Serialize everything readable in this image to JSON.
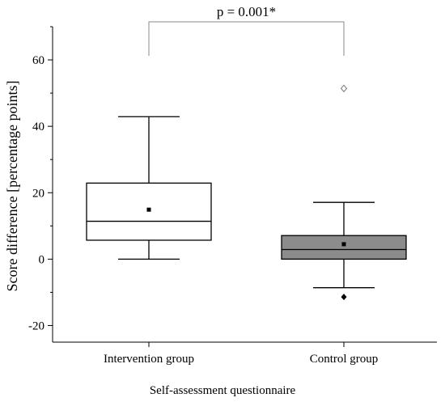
{
  "chart_data": {
    "type": "boxplot",
    "xlabel": "Self-assessment questionnaire",
    "ylabel": "Score difference [percentage points]",
    "ylim": [
      -25,
      70
    ],
    "yticks": [
      -20,
      0,
      20,
      40,
      60
    ],
    "grid": false,
    "categories": [
      "Intervention group",
      "Control group"
    ],
    "boxes": [
      {
        "category": "Intervention group",
        "whisker_low": 0,
        "q1": 5.7,
        "median": 11.4,
        "q3": 22.9,
        "whisker_high": 42.9,
        "mean": 14.9,
        "outliers": [],
        "fill": "#ffffff"
      },
      {
        "category": "Control group",
        "whisker_low": -8.6,
        "q1": 0,
        "median": 2.9,
        "q3": 7.1,
        "whisker_high": 17.1,
        "mean": 4.5,
        "outliers": [
          {
            "value": 51.4,
            "marker": "open-diamond"
          },
          {
            "value": -11.4,
            "marker": "filled-diamond"
          }
        ],
        "fill": "#8c8c8c"
      }
    ],
    "annotation": "p = 0.001*"
  }
}
